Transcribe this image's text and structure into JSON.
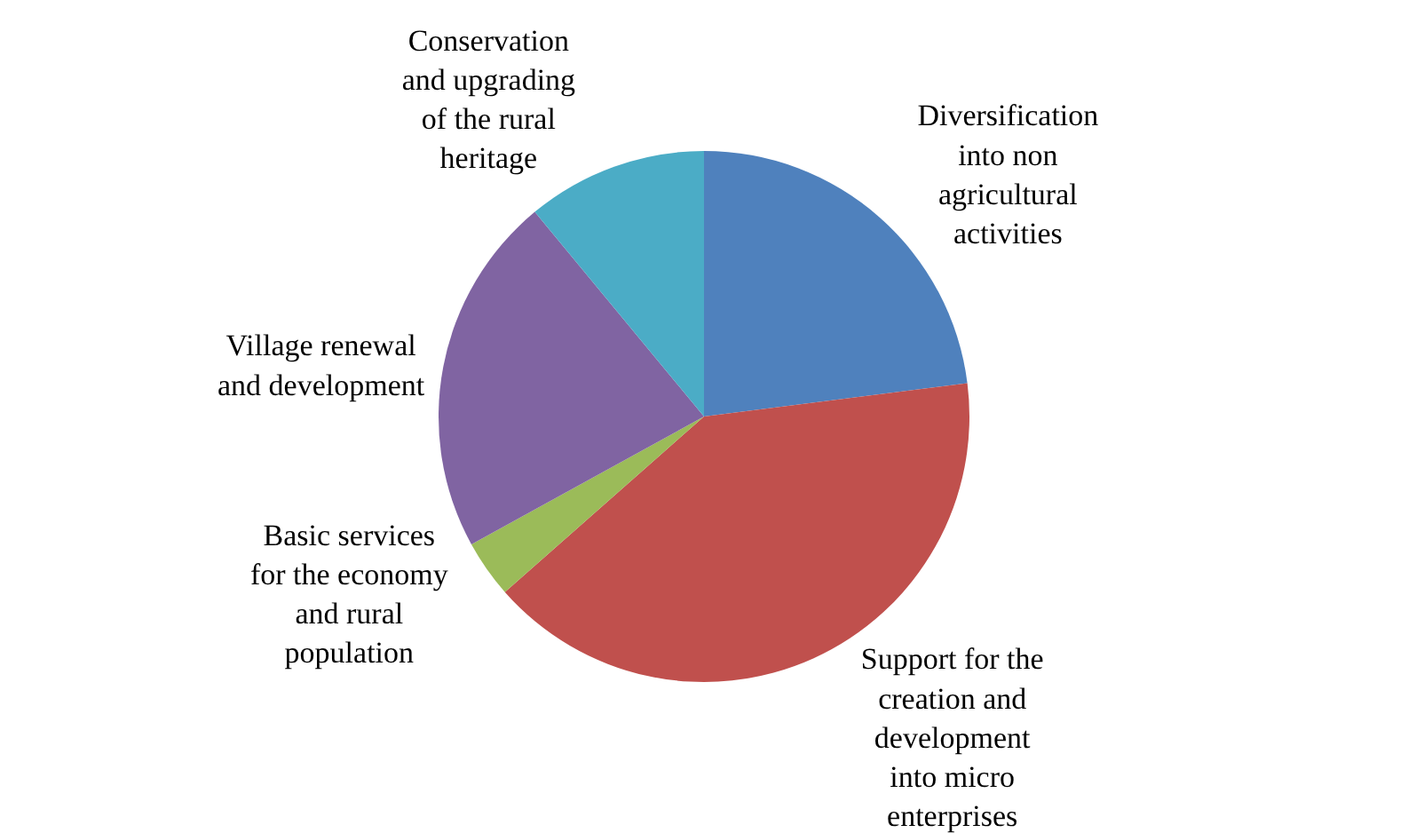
{
  "chart_data": {
    "type": "pie",
    "categories": [
      "Diversification into non agricultural activities",
      "Support for the creation and development into micro enterprises",
      "Basic services for the economy and rural population",
      "Village renewal and development",
      "Conservation and upgrading of the rural heritage"
    ],
    "values": [
      23,
      40.5,
      3.5,
      22,
      11
    ],
    "colors": [
      "#4f81bd",
      "#c0504d",
      "#9bbb59",
      "#8064a2",
      "#4bacc6"
    ],
    "legend": false
  }
}
